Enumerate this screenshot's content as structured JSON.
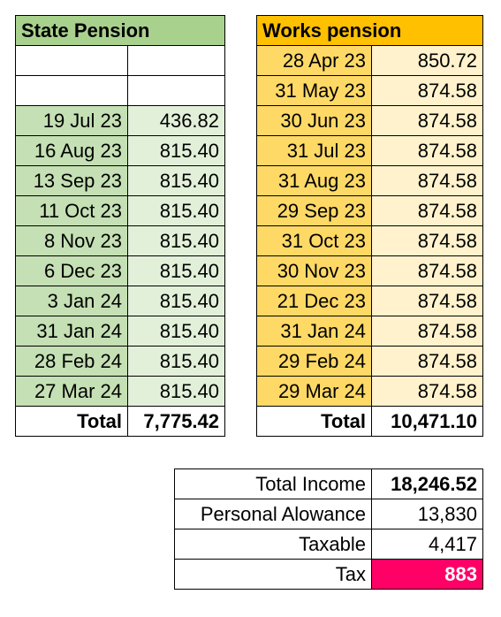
{
  "state_pension": {
    "title": "State Pension",
    "rows": [
      {
        "date": "",
        "amount": ""
      },
      {
        "date": "",
        "amount": ""
      },
      {
        "date": "19 Jul 23",
        "amount": "436.82"
      },
      {
        "date": "16 Aug 23",
        "amount": "815.40"
      },
      {
        "date": "13 Sep 23",
        "amount": "815.40"
      },
      {
        "date": "11 Oct 23",
        "amount": "815.40"
      },
      {
        "date": "8 Nov 23",
        "amount": "815.40"
      },
      {
        "date": "6 Dec 23",
        "amount": "815.40"
      },
      {
        "date": "3 Jan 24",
        "amount": "815.40"
      },
      {
        "date": "31 Jan 24",
        "amount": "815.40"
      },
      {
        "date": "28 Feb 24",
        "amount": "815.40"
      },
      {
        "date": "27 Mar 24",
        "amount": "815.40"
      }
    ],
    "total_label": "Total",
    "total_value": "7,775.42"
  },
  "works_pension": {
    "title": "Works pension",
    "rows": [
      {
        "date": "28 Apr 23",
        "amount": "850.72"
      },
      {
        "date": "31 May 23",
        "amount": "874.58"
      },
      {
        "date": "30 Jun 23",
        "amount": "874.58"
      },
      {
        "date": "31 Jul 23",
        "amount": "874.58"
      },
      {
        "date": "31 Aug 23",
        "amount": "874.58"
      },
      {
        "date": "29 Sep 23",
        "amount": "874.58"
      },
      {
        "date": "31 Oct 23",
        "amount": "874.58"
      },
      {
        "date": "30 Nov 23",
        "amount": "874.58"
      },
      {
        "date": "21 Dec 23",
        "amount": "874.58"
      },
      {
        "date": "31 Jan 24",
        "amount": "874.58"
      },
      {
        "date": "29 Feb 24",
        "amount": "874.58"
      },
      {
        "date": "29 Mar 24",
        "amount": "874.58"
      }
    ],
    "total_label": "Total",
    "total_value": "10,471.10"
  },
  "summary": {
    "total_income_label": "Total Income",
    "total_income_value": "18,246.52",
    "allowance_label": "Personal Alowance",
    "allowance_value": "13,830",
    "taxable_label": "Taxable",
    "taxable_value": "4,417",
    "tax_label": "Tax",
    "tax_value": "883"
  },
  "colors": {
    "state_header": "#a9d18e",
    "works_header": "#ffc000",
    "tax_highlight": "#ff0066"
  }
}
